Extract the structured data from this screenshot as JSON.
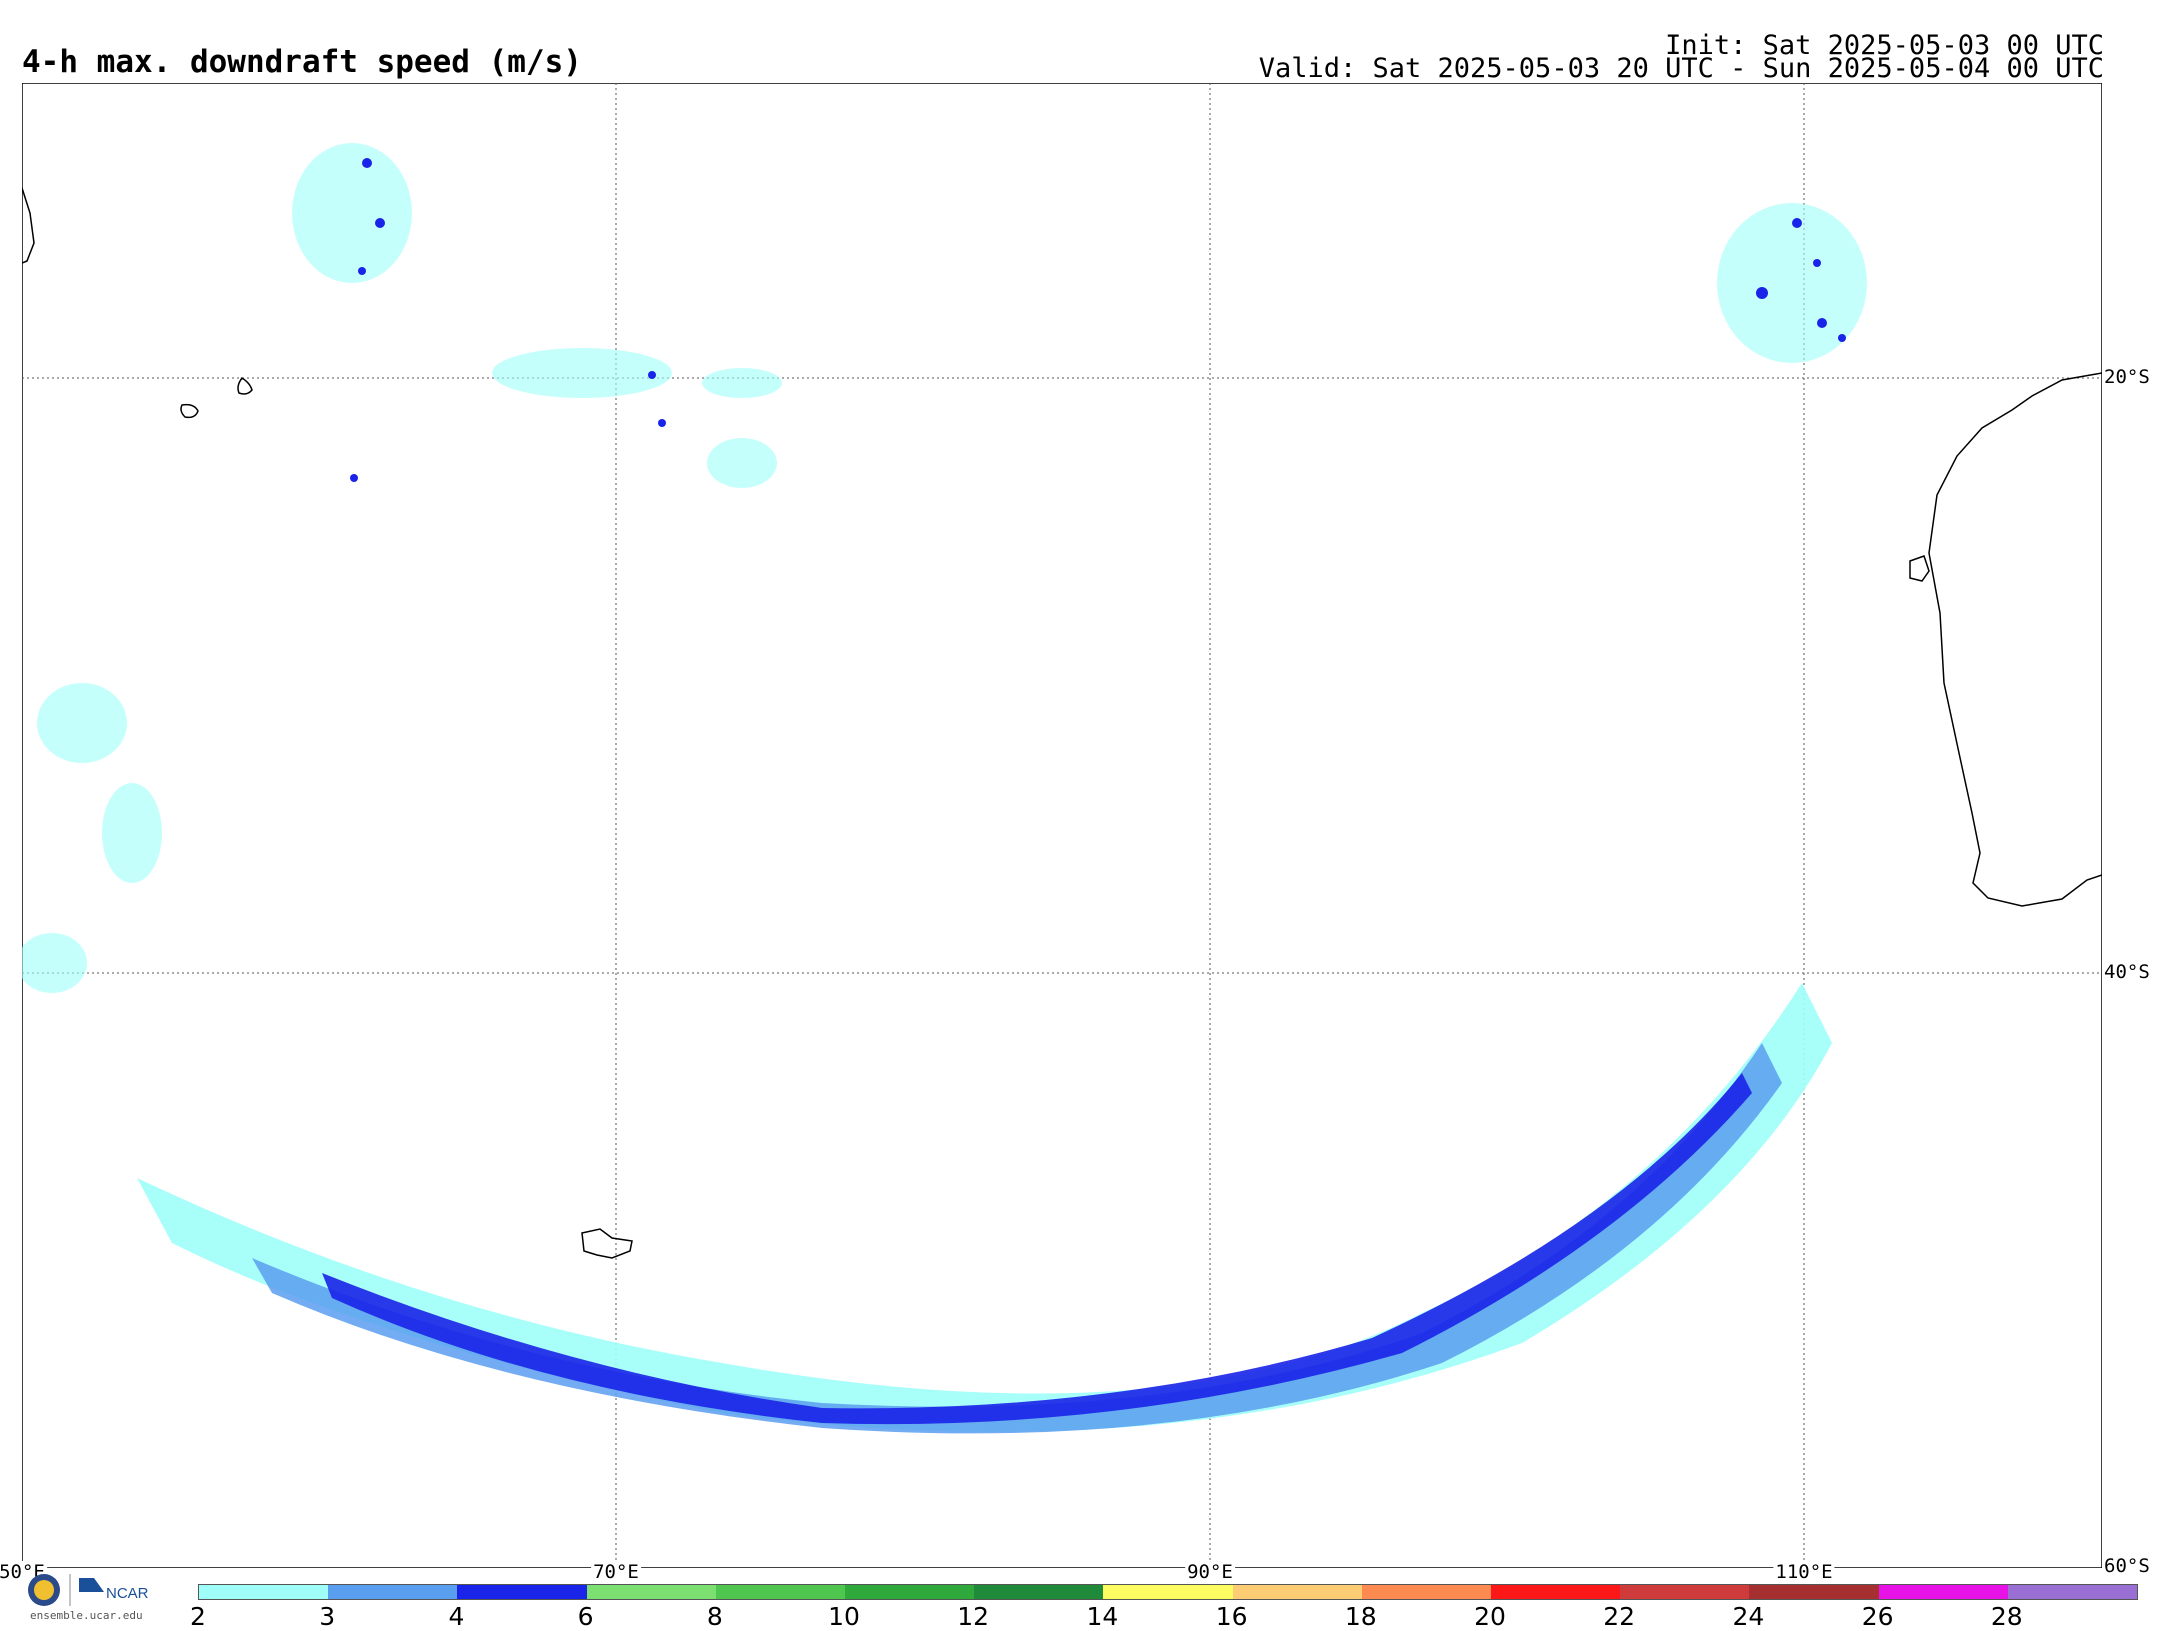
{
  "header": {
    "title": "4-h max. downdraft speed (m/s)",
    "init": "Init: Sat 2025-05-03 00 UTC",
    "valid": "Valid: Sat 2025-05-03 20 UTC - Sun 2025-05-04 00 UTC"
  },
  "map": {
    "lat_labels": [
      "20°S",
      "40°S",
      "60°S"
    ],
    "lon_labels": [
      "50°E",
      "70°E",
      "90°E",
      "110°E"
    ],
    "grid_lines": "dotted"
  },
  "colorbar": {
    "labels": [
      "2",
      "3",
      "4",
      "6",
      "8",
      "10",
      "12",
      "14",
      "16",
      "18",
      "20",
      "22",
      "24",
      "26",
      "28"
    ],
    "colors": [
      "#9ffff8",
      "#5a9ef0",
      "#1a23e8",
      "#7be071",
      "#4ec650",
      "#2fa83c",
      "#1f8a3a",
      "#fdfd61",
      "#fccd74",
      "#fd8a50",
      "#fc1818",
      "#cf3a3a",
      "#a63030",
      "#e612e6",
      "#9a6fd4"
    ]
  },
  "branding": {
    "logo_text": "NCAR",
    "site": "ensemble.ucar.edu"
  }
}
